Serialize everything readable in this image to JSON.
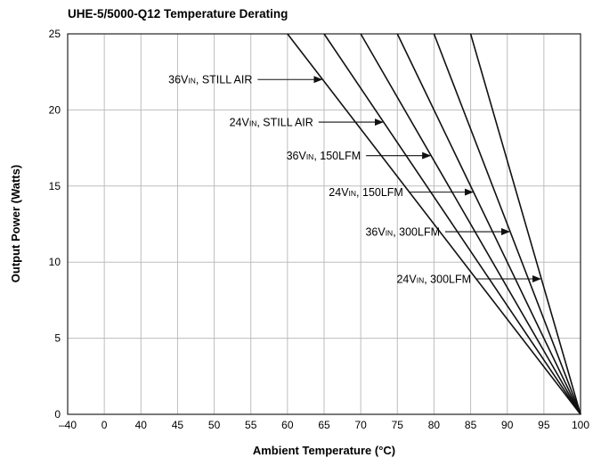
{
  "chart_data": {
    "type": "line",
    "title": "UHE-5/5000-Q12 Temperature Derating",
    "xlabel": "Ambient Temperature (°C)",
    "ylabel": "Output Power (Watts)",
    "x_categories": [
      "–40",
      "0",
      "40",
      "45",
      "50",
      "55",
      "60",
      "65",
      "70",
      "75",
      "80",
      "85",
      "90",
      "95",
      "100"
    ],
    "xlim": [
      "–40",
      "100"
    ],
    "yticks": [
      0,
      5,
      10,
      15,
      20,
      25
    ],
    "ylim": [
      0,
      25
    ],
    "grid": true,
    "series": [
      {
        "name": "36Vᴵᴺ, STILL AIR",
        "points": [
          [
            "60",
            25
          ],
          [
            "100",
            0
          ]
        ]
      },
      {
        "name": "24Vᴵᴺ, STILL AIR",
        "points": [
          [
            "65",
            25
          ],
          [
            "100",
            0
          ]
        ]
      },
      {
        "name": "36Vᴵᴺ, 150LFM",
        "points": [
          [
            "70",
            25
          ],
          [
            "100",
            0
          ]
        ]
      },
      {
        "name": "24Vᴵᴺ, 150LFM",
        "points": [
          [
            "75",
            25
          ],
          [
            "100",
            0
          ]
        ]
      },
      {
        "name": "36Vᴵᴺ, 300LFM",
        "points": [
          [
            "80",
            25
          ],
          [
            "100",
            0
          ]
        ]
      },
      {
        "name": "24Vᴵᴺ, 300LFM",
        "points": [
          [
            "85",
            25
          ],
          [
            "100",
            0
          ]
        ]
      }
    ],
    "annotations": [
      {
        "label_prefix": "36V",
        "label_sub": "IN",
        "label_suffix": ", STILL AIR",
        "series": 0,
        "arrow_y": 22
      },
      {
        "label_prefix": "24V",
        "label_sub": "IN",
        "label_suffix": ", STILL AIR",
        "series": 1,
        "arrow_y": 19.2
      },
      {
        "label_prefix": "36V",
        "label_sub": "IN",
        "label_suffix": ", 150LFM",
        "series": 2,
        "arrow_y": 17
      },
      {
        "label_prefix": "24V",
        "label_sub": "IN",
        "label_suffix": ", 150LFM",
        "series": 3,
        "arrow_y": 14.6
      },
      {
        "label_prefix": "36V",
        "label_sub": "IN",
        "label_suffix": ", 300LFM",
        "series": 4,
        "arrow_y": 12
      },
      {
        "label_prefix": "24V",
        "label_sub": "IN",
        "label_suffix": ", 300LFM",
        "series": 5,
        "arrow_y": 8.9
      }
    ]
  }
}
